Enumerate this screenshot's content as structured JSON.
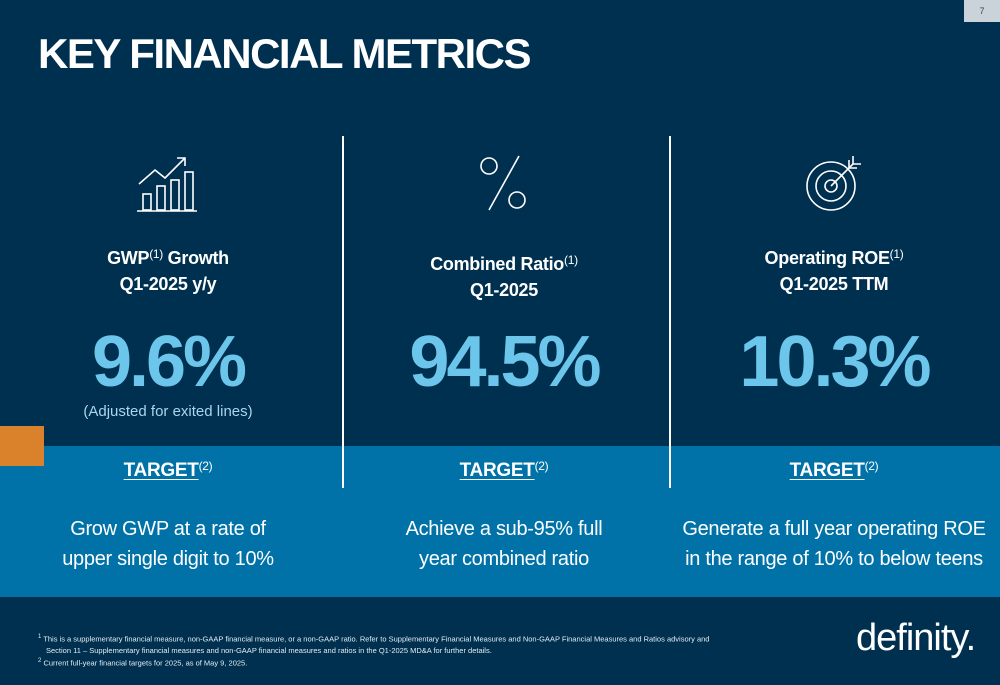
{
  "page_number": "7",
  "title": "KEY FINANCIAL METRICS",
  "columns": [
    {
      "icon": "growth-chart-icon",
      "heading_main": "GWP",
      "heading_sup": "(1)",
      "heading_after": " Growth",
      "heading_line2": "Q1-2025 y/y",
      "value": "9.6%",
      "note": "(Adjusted for exited lines)",
      "target_label": "TARGET",
      "target_sup": "(2)",
      "target_line1": "Grow GWP at a rate of",
      "target_line2": "upper single digit to 10%"
    },
    {
      "icon": "percent-icon",
      "heading_main": "Combined Ratio",
      "heading_sup": "(1)",
      "heading_after": "",
      "heading_line2": "Q1-2025",
      "value": "94.5%",
      "note": "",
      "target_label": "TARGET",
      "target_sup": "(2)",
      "target_line1": "Achieve a sub-95% full",
      "target_line2": "year combined ratio"
    },
    {
      "icon": "target-icon",
      "heading_main": "Operating ROE",
      "heading_sup": "(1)",
      "heading_after": "",
      "heading_line2": "Q1-2025 TTM",
      "value": "10.3%",
      "note": "",
      "target_label": "TARGET",
      "target_sup": "(2)",
      "target_line1": "Generate a full year operating ROE",
      "target_line2": "in the range of 10% to below teens"
    }
  ],
  "footnotes": {
    "fn1_marker": "1",
    "fn1_line1": "This is a supplementary financial measure, non-GAAP financial measure, or a non-GAAP ratio. Refer to Supplementary Financial Measures and Non-GAAP Financial Measures and Ratios advisory and",
    "fn1_line2": "Section 11 – Supplementary financial measures and non-GAAP financial measures and ratios in the Q1-2025 MD&A for further details.",
    "fn2_marker": "2",
    "fn2_line1": "Current full-year financial targets for 2025, as of May 9, 2025."
  },
  "logo_text": "definity.",
  "colors": {
    "background": "#00304f",
    "band": "#0072a8",
    "accent_value": "#6cc5ea",
    "orange_tab": "#d9822b"
  }
}
